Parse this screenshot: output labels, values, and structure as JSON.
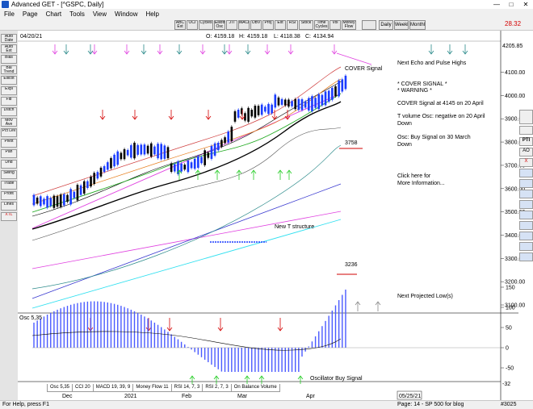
{
  "window": {
    "title": "Advanced GET - [^GSPC, Daily]",
    "minimize": "—",
    "maximize": "□",
    "close": "✕"
  },
  "menu": [
    "File",
    "Page",
    "Chart",
    "Tools",
    "View",
    "Window",
    "Help"
  ],
  "toolbar": {
    "buttons": [
      "ABC Ext",
      "OCI",
      "Cycles",
      "Elliott Osc",
      "JTI",
      "MACD",
      "OBV",
      "Proj",
      "Ext",
      "RSI",
      "Stock",
      "Time Cycles",
      "Vol",
      "Money Flow"
    ],
    "period_tabs": [
      "Daily",
      "Weekly",
      "Monthly"
    ],
    "last_price": "28.32"
  },
  "sidebar_buttons": [
    "Auto Date",
    "Auto Ext",
    "Bias",
    "Bal Trend",
    "Ellicot",
    "Expl",
    "Fib",
    "Dstch",
    "Mov Ave",
    "Pct Lev",
    "Pivot",
    "Pan",
    "Dnd",
    "Swing",
    "Trade",
    "Profit",
    "Lines",
    "XTL"
  ],
  "right_toolbar": [
    "PTI",
    "AO",
    "X",
    "",
    "",
    "",
    "",
    "",
    "",
    "",
    ""
  ],
  "chart_header": {
    "date": "04/20/21",
    "open_label": "O:",
    "open": "4159.18",
    "high_label": "H:",
    "high": "4159.18",
    "low_label": "L:",
    "low": "4118.38",
    "close_label": "C:",
    "close": "4134.94"
  },
  "annotations": {
    "cover_signal": "COVER Signal",
    "echo_pulse": "Next Echo and Pulse Highs",
    "cover_title": "* COVER SIGNAL *",
    "warning": "* WARNING *",
    "cover_at": "COVER Signal at 4145 on 20 April",
    "tvol_1": "T volume Osc: negative on 20 April",
    "tvol_2": "Down",
    "osc_1": "Osc: Buy Signal on 30 March",
    "osc_2": "Down",
    "click_1": "Click here for",
    "click_2": "More Information...",
    "level_3758": "3758",
    "level_3236": "3236",
    "new_t": "New T structure",
    "next_low": "Next Projected Low(s)",
    "osc_buy": "Oscillator Buy Signal"
  },
  "price_axis": {
    "current": "4205.85",
    "ticks": [
      "4100.00",
      "4000.00",
      "3900.00",
      "3800.00",
      "3700.00",
      "3600.00",
      "3500.00",
      "3400.00",
      "3300.00",
      "3200.00",
      "3100.00"
    ],
    "values": [
      4100,
      4000,
      3900,
      3800,
      3700,
      3600,
      3500,
      3400,
      3300,
      3200,
      3100
    ]
  },
  "osc_panel": {
    "label": "Osc 5,35",
    "ticks": [
      "150",
      "100",
      "50",
      "0",
      "-50"
    ],
    "values": [
      150,
      100,
      50,
      0,
      -50
    ],
    "last_value": "-32"
  },
  "bottom_tabs": [
    "Osc 5,35",
    "CCI 20",
    "MACD 19, 39, 9",
    "Money Flow 11",
    "RSI 14, 7, 3",
    "RSI 2, 7, 3",
    "On Balance Volume"
  ],
  "time_axis": {
    "labels": [
      "Dec",
      "2021",
      "Feb",
      "Mar",
      "Apr"
    ],
    "date_box": "05/25/21"
  },
  "status": {
    "help": "For Help, press F1",
    "page": "Page: 14 - SP 500 for blog",
    "code": "#3025"
  },
  "colors": {
    "up_bar": "#1a3cff",
    "down_bar": "#000000",
    "red_arrow": "#d40000",
    "green_arrow": "#22cc22",
    "magenta_arrow": "#e040e0",
    "teal_arrow": "#2a8a8a"
  }
}
